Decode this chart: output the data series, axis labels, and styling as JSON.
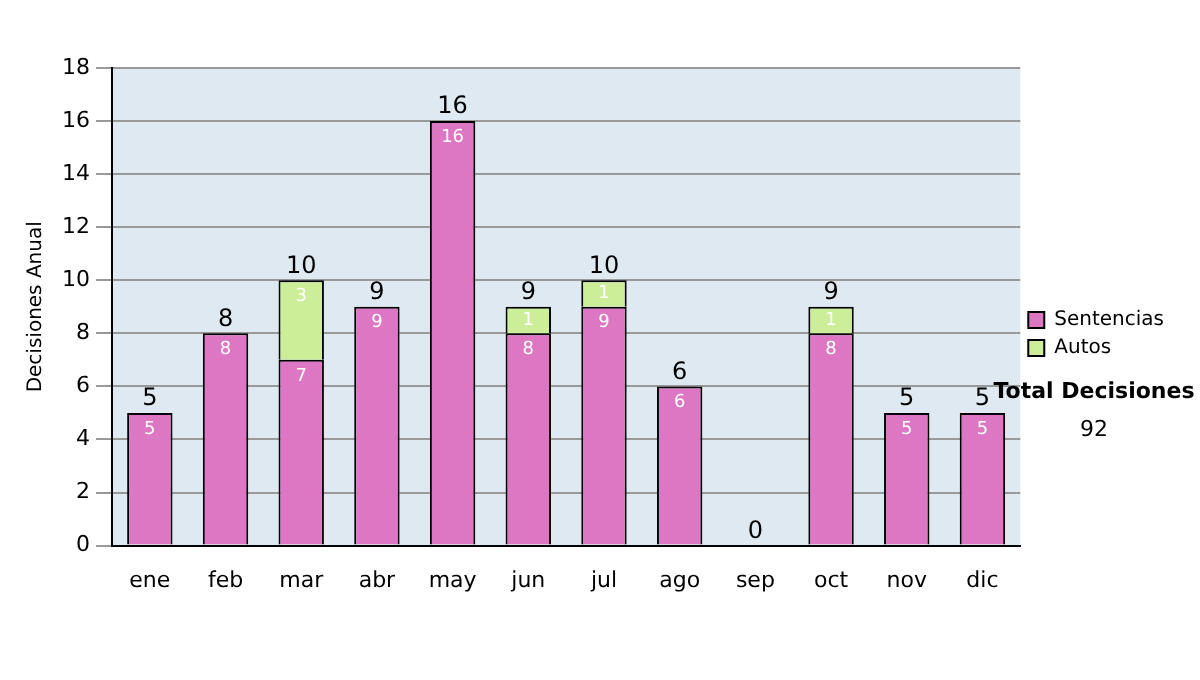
{
  "chart_data": {
    "type": "bar",
    "stacked": true,
    "ylabel": "Decisiones Anual",
    "categories": [
      "ene",
      "feb",
      "mar",
      "abr",
      "may",
      "jun",
      "jul",
      "ago",
      "sep",
      "oct",
      "nov",
      "dic"
    ],
    "series": [
      {
        "name": "Sentencias",
        "color": "#dd77c4",
        "values": [
          5,
          8,
          7,
          9,
          16,
          8,
          9,
          6,
          0,
          8,
          5,
          5
        ],
        "value_labels": [
          "5",
          "8",
          "7",
          "9",
          "16",
          "8",
          "9",
          "6",
          null,
          "8",
          "5",
          "5"
        ]
      },
      {
        "name": "Autos",
        "color": "#ccee99",
        "values": [
          0,
          0,
          3,
          0,
          0,
          1,
          1,
          0,
          0,
          1,
          0,
          0
        ],
        "value_labels": [
          null,
          null,
          "3",
          null,
          null,
          "1",
          "1",
          null,
          null,
          "1",
          null,
          null
        ]
      }
    ],
    "totals": [
      "5",
      "8",
      "10",
      "9",
      "16",
      "9",
      "10",
      "6",
      "0",
      "9",
      "5",
      "5"
    ],
    "ylim": [
      0,
      18
    ],
    "yticks": [
      0,
      2,
      4,
      6,
      8,
      10,
      12,
      14,
      16,
      18
    ],
    "grid": "y",
    "legend": "right",
    "annotations": [
      "Total Decisiones",
      "92"
    ]
  }
}
